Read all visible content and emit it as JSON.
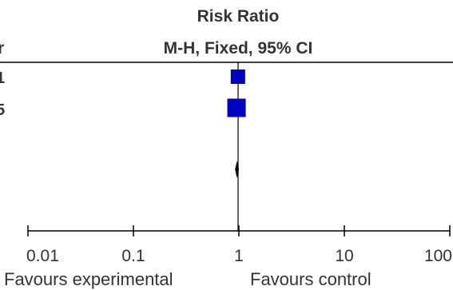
{
  "chart_data": {
    "type": "scatter",
    "title": "Risk Ratio",
    "subtitle": "M-H, Fixed, 95% CI",
    "scale": "log",
    "xlim": [
      0.01,
      100
    ],
    "ticks": [
      {
        "value": 0.01,
        "label": "0.01"
      },
      {
        "value": 0.1,
        "label": "0.1"
      },
      {
        "value": 1,
        "label": "1"
      },
      {
        "value": 10,
        "label": "10"
      },
      {
        "value": 100,
        "label": "100"
      }
    ],
    "left_header_fragment": "r",
    "row_label_fragments": [
      "1",
      "5"
    ],
    "studies": [
      {
        "label": "1",
        "rr": 0.98,
        "size": 18
      },
      {
        "label": "5",
        "rr": 0.95,
        "size": 23
      }
    ],
    "pooled": {
      "rr": 0.96,
      "lo": 0.92,
      "hi": 1.0
    },
    "favours_left": "Favours experimental",
    "favours_right": "Favours control",
    "colors": {
      "box": "#0000c0",
      "diamond": "#000000",
      "axis": "#000000"
    }
  }
}
